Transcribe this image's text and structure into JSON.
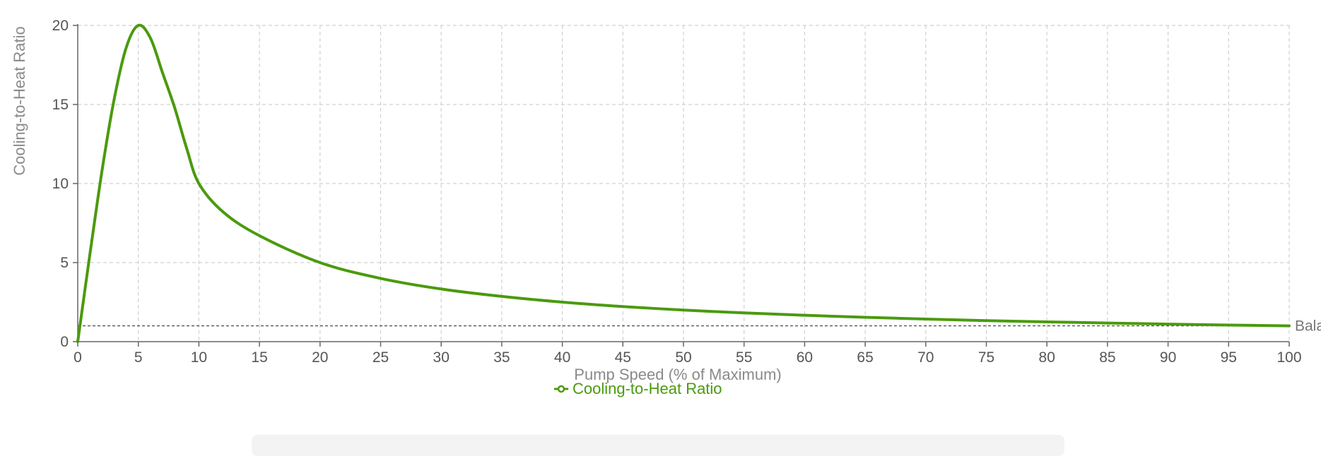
{
  "chart_data": {
    "type": "line",
    "title": "",
    "xlabel": "Pump Speed (% of Maximum)",
    "ylabel": "Cooling-to-Heat Ratio",
    "xlim": [
      0,
      100
    ],
    "ylim": [
      0,
      20
    ],
    "x_ticks": [
      "0",
      "5",
      "10",
      "15",
      "20",
      "25",
      "30",
      "35",
      "40",
      "45",
      "50",
      "55",
      "60",
      "65",
      "70",
      "75",
      "80",
      "85",
      "90",
      "95",
      "100"
    ],
    "y_ticks": [
      "0",
      "5",
      "10",
      "15",
      "20"
    ],
    "grid": true,
    "legend": "bottom-center",
    "series": [
      {
        "name": "Cooling-to-Heat Ratio",
        "color": "#4a9a0e",
        "x": [
          0,
          1,
          2,
          3,
          4,
          5,
          6,
          7,
          8,
          9,
          10,
          12,
          15,
          20,
          25,
          30,
          35,
          40,
          45,
          50,
          55,
          60,
          65,
          70,
          75,
          80,
          85,
          90,
          95,
          100
        ],
        "y": [
          0,
          5.5,
          10.8,
          15.3,
          18.6,
          20,
          19.2,
          17.0,
          14.8,
          12.2,
          10.0,
          8.2,
          6.7,
          5.0,
          4.0,
          3.33,
          2.86,
          2.5,
          2.22,
          2.0,
          1.82,
          1.67,
          1.54,
          1.43,
          1.33,
          1.25,
          1.18,
          1.11,
          1.05,
          1.0
        ]
      }
    ],
    "reference_lines": [
      {
        "y": 1,
        "label": "Bala",
        "color": "#555555",
        "style": "dashed"
      }
    ]
  }
}
